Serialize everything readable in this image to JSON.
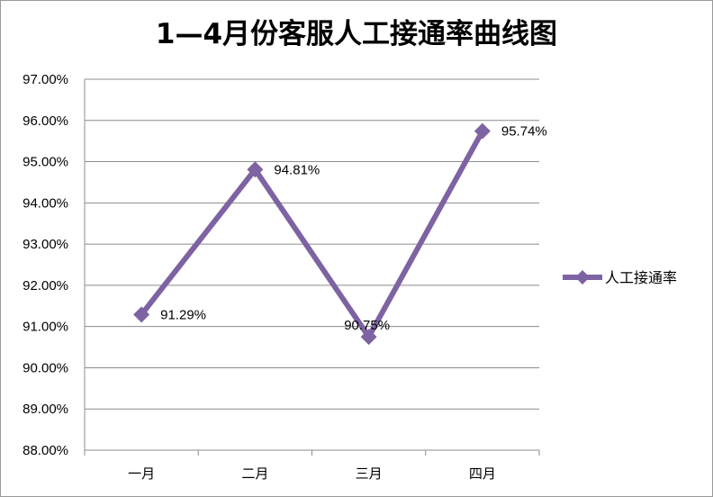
{
  "chart_data": {
    "type": "line",
    "title": "1—4月份客服人工接通率曲线图",
    "xlabel": "",
    "ylabel": "",
    "categories": [
      "一月",
      "二月",
      "三月",
      "四月"
    ],
    "series": [
      {
        "name": "人工接通率",
        "values": [
          91.29,
          94.81,
          90.75,
          95.74
        ],
        "labels": [
          "91.29%",
          "94.81%",
          "90.75%",
          "95.74%"
        ],
        "color": "#7e63a3"
      }
    ],
    "ylim": [
      88,
      97
    ],
    "yticks": [
      97,
      96,
      95,
      94,
      93,
      92,
      91,
      90,
      89,
      88
    ],
    "ytick_labels": [
      "97.00%",
      "96.00%",
      "95.00%",
      "94.00%",
      "93.00%",
      "92.00%",
      "91.00%",
      "90.00%",
      "89.00%",
      "88.00%"
    ],
    "grid": true,
    "legend_position": "right",
    "colors": {
      "gridline": "#8c8c8c",
      "axis": "#8c8c8c",
      "frame": "#9a9a9a"
    }
  }
}
